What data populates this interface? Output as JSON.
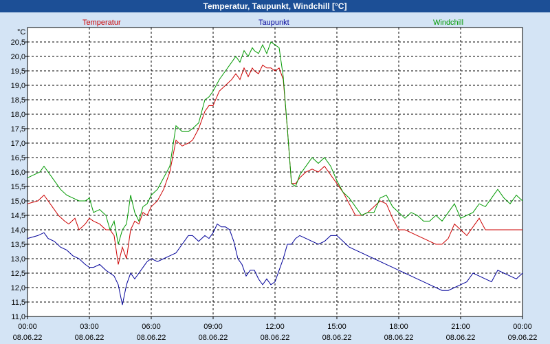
{
  "chart_data": {
    "type": "line",
    "title": "Temperatur, Taupunkt, Windchill [°C]",
    "ylabel": "°C",
    "ylim": [
      11.0,
      20.5
    ],
    "yticks": [
      "11,0",
      "11,5",
      "12,0",
      "12,5",
      "13,0",
      "13,5",
      "14,0",
      "14,5",
      "15,0",
      "15,5",
      "16,0",
      "16,5",
      "17,0",
      "17,5",
      "18,0",
      "18,5",
      "19,0",
      "19,5",
      "20,0",
      "20,5"
    ],
    "xlim": [
      0,
      24
    ],
    "xticks": [
      {
        "time": "00:00",
        "date": "08.06.22"
      },
      {
        "time": "03:00",
        "date": "08.06.22"
      },
      {
        "time": "06:00",
        "date": "08.06.22"
      },
      {
        "time": "09:00",
        "date": "08.06.22"
      },
      {
        "time": "12:00",
        "date": "08.06.22"
      },
      {
        "time": "15:00",
        "date": "08.06.22"
      },
      {
        "time": "18:00",
        "date": "08.06.22"
      },
      {
        "time": "21:00",
        "date": "08.06.22"
      },
      {
        "time": "00:00",
        "date": "09.06.22"
      }
    ],
    "grid": true,
    "colors": {
      "title_bar": "#1c4f96",
      "plot_bg": "#ffffff",
      "page_bg": "#d4e4f5"
    },
    "series": [
      {
        "name": "Temperatur",
        "color": "#cc0000",
        "x": [
          0,
          0.5,
          0.8,
          1.0,
          1.2,
          1.5,
          1.8,
          2.0,
          2.3,
          2.5,
          2.8,
          3.0,
          3.2,
          3.5,
          3.8,
          4.0,
          4.2,
          4.4,
          4.6,
          4.8,
          5.0,
          5.2,
          5.4,
          5.6,
          5.8,
          6.0,
          6.3,
          6.6,
          6.9,
          7.2,
          7.5,
          7.8,
          8.0,
          8.3,
          8.6,
          8.8,
          9.0,
          9.3,
          9.6,
          9.9,
          10.1,
          10.3,
          10.5,
          10.7,
          10.9,
          11.0,
          11.2,
          11.4,
          11.6,
          11.8,
          12.0,
          12.2,
          12.4,
          12.6,
          12.8,
          13.0,
          13.2,
          13.5,
          13.8,
          14.1,
          14.4,
          14.7,
          15.0,
          15.3,
          15.6,
          15.9,
          16.2,
          16.5,
          16.8,
          17.1,
          17.4,
          17.7,
          18.0,
          18.3,
          18.6,
          18.9,
          19.2,
          19.5,
          19.8,
          20.1,
          20.4,
          20.7,
          21.0,
          21.3,
          21.6,
          21.9,
          22.2,
          22.5,
          22.8,
          23.1,
          23.4,
          23.7,
          24.0
        ],
        "values": [
          14.9,
          15.0,
          15.2,
          15.0,
          14.8,
          14.5,
          14.3,
          14.2,
          14.4,
          14.0,
          14.2,
          14.4,
          14.3,
          14.2,
          14.0,
          14.0,
          13.8,
          12.8,
          13.4,
          13.0,
          14.0,
          14.3,
          14.2,
          14.6,
          14.5,
          14.8,
          15.0,
          15.4,
          16.0,
          17.1,
          16.9,
          17.0,
          17.1,
          17.5,
          18.1,
          18.3,
          18.3,
          18.8,
          19.0,
          19.2,
          19.4,
          19.2,
          19.6,
          19.3,
          19.6,
          19.5,
          19.4,
          19.7,
          19.6,
          19.6,
          19.5,
          19.6,
          19.2,
          17.5,
          15.6,
          15.6,
          15.8,
          16.0,
          16.1,
          16.0,
          16.2,
          15.9,
          15.6,
          15.3,
          14.9,
          14.5,
          14.5,
          14.6,
          14.8,
          15.0,
          14.9,
          14.4,
          14.0,
          14.0,
          13.9,
          13.8,
          13.7,
          13.6,
          13.5,
          13.5,
          13.7,
          14.2,
          14.0,
          13.8,
          14.1,
          14.4,
          14.0,
          14.0,
          14.0,
          14.0,
          14.0,
          14.0,
          14.0
        ]
      },
      {
        "name": "Taupunkt",
        "color": "#000099",
        "x": [
          0,
          0.5,
          0.8,
          1.0,
          1.3,
          1.6,
          1.9,
          2.2,
          2.5,
          2.8,
          3.0,
          3.2,
          3.5,
          3.8,
          4.0,
          4.2,
          4.4,
          4.6,
          4.8,
          5.0,
          5.2,
          5.4,
          5.6,
          5.8,
          6.0,
          6.3,
          6.6,
          6.9,
          7.2,
          7.5,
          7.8,
          8.0,
          8.3,
          8.6,
          8.8,
          9.0,
          9.2,
          9.4,
          9.6,
          9.8,
          10.0,
          10.2,
          10.4,
          10.6,
          10.8,
          11.0,
          11.2,
          11.4,
          11.6,
          11.8,
          12.0,
          12.2,
          12.4,
          12.6,
          12.8,
          13.0,
          13.2,
          13.5,
          13.8,
          14.1,
          14.4,
          14.7,
          15.0,
          15.3,
          15.6,
          15.9,
          16.2,
          16.5,
          16.8,
          17.1,
          17.4,
          17.7,
          18.0,
          18.3,
          18.6,
          18.9,
          19.2,
          19.5,
          19.8,
          20.1,
          20.4,
          20.7,
          21.0,
          21.3,
          21.6,
          21.9,
          22.2,
          22.5,
          22.8,
          23.1,
          23.4,
          23.7,
          24.0
        ],
        "values": [
          13.7,
          13.8,
          13.9,
          13.7,
          13.6,
          13.4,
          13.3,
          13.1,
          13.0,
          12.8,
          12.7,
          12.7,
          12.8,
          12.6,
          12.5,
          12.4,
          12.1,
          11.4,
          12.1,
          12.5,
          12.3,
          12.5,
          12.7,
          12.9,
          13.0,
          12.9,
          13.0,
          13.1,
          13.2,
          13.5,
          13.8,
          13.8,
          13.6,
          13.8,
          13.7,
          13.9,
          14.2,
          14.1,
          14.1,
          14.0,
          13.6,
          13.0,
          12.8,
          12.4,
          12.6,
          12.6,
          12.3,
          12.1,
          12.3,
          12.1,
          12.2,
          12.6,
          13.0,
          13.5,
          13.5,
          13.7,
          13.8,
          13.7,
          13.6,
          13.5,
          13.6,
          13.8,
          13.8,
          13.6,
          13.4,
          13.3,
          13.2,
          13.1,
          13.0,
          12.9,
          12.8,
          12.7,
          12.6,
          12.5,
          12.4,
          12.3,
          12.2,
          12.1,
          12.0,
          11.9,
          11.9,
          12.0,
          12.1,
          12.2,
          12.5,
          12.4,
          12.3,
          12.2,
          12.6,
          12.5,
          12.4,
          12.3,
          12.5
        ]
      },
      {
        "name": "Windchill",
        "color": "#009900",
        "x": [
          0,
          0.3,
          0.6,
          0.8,
          1.0,
          1.3,
          1.6,
          1.9,
          2.2,
          2.5,
          2.8,
          3.0,
          3.2,
          3.5,
          3.8,
          4.0,
          4.2,
          4.4,
          4.6,
          4.8,
          5.0,
          5.2,
          5.4,
          5.6,
          5.8,
          6.0,
          6.3,
          6.6,
          6.9,
          7.2,
          7.5,
          7.8,
          8.0,
          8.3,
          8.6,
          8.8,
          9.0,
          9.3,
          9.6,
          9.9,
          10.1,
          10.3,
          10.5,
          10.7,
          10.9,
          11.0,
          11.2,
          11.4,
          11.6,
          11.8,
          12.0,
          12.2,
          12.4,
          12.6,
          12.8,
          13.0,
          13.2,
          13.5,
          13.8,
          14.1,
          14.4,
          14.7,
          15.0,
          15.3,
          15.6,
          15.9,
          16.2,
          16.5,
          16.8,
          17.1,
          17.4,
          17.7,
          18.0,
          18.3,
          18.6,
          18.9,
          19.2,
          19.5,
          19.8,
          20.1,
          20.4,
          20.7,
          21.0,
          21.3,
          21.6,
          21.9,
          22.2,
          22.5,
          22.8,
          23.1,
          23.4,
          23.7,
          24.0
        ],
        "values": [
          15.8,
          15.9,
          16.0,
          16.2,
          16.0,
          15.7,
          15.4,
          15.2,
          15.1,
          15.0,
          15.0,
          15.1,
          14.6,
          14.7,
          14.5,
          14.0,
          14.3,
          13.5,
          14.0,
          14.2,
          15.2,
          14.6,
          14.3,
          14.8,
          14.9,
          15.2,
          15.4,
          15.8,
          16.2,
          17.6,
          17.4,
          17.4,
          17.5,
          17.7,
          18.5,
          18.6,
          18.8,
          19.2,
          19.5,
          19.8,
          20.0,
          19.8,
          20.2,
          20.0,
          20.3,
          20.2,
          20.1,
          20.4,
          20.1,
          20.5,
          20.4,
          20.3,
          19.3,
          17.5,
          15.6,
          15.5,
          15.9,
          16.2,
          16.5,
          16.3,
          16.5,
          16.2,
          15.7,
          15.3,
          15.1,
          14.8,
          14.5,
          14.6,
          14.6,
          15.1,
          15.2,
          14.8,
          14.6,
          14.4,
          14.6,
          14.5,
          14.3,
          14.3,
          14.5,
          14.3,
          14.6,
          14.9,
          14.4,
          14.5,
          14.6,
          14.9,
          14.8,
          15.1,
          15.4,
          15.1,
          14.9,
          15.2,
          15.0
        ]
      }
    ]
  }
}
